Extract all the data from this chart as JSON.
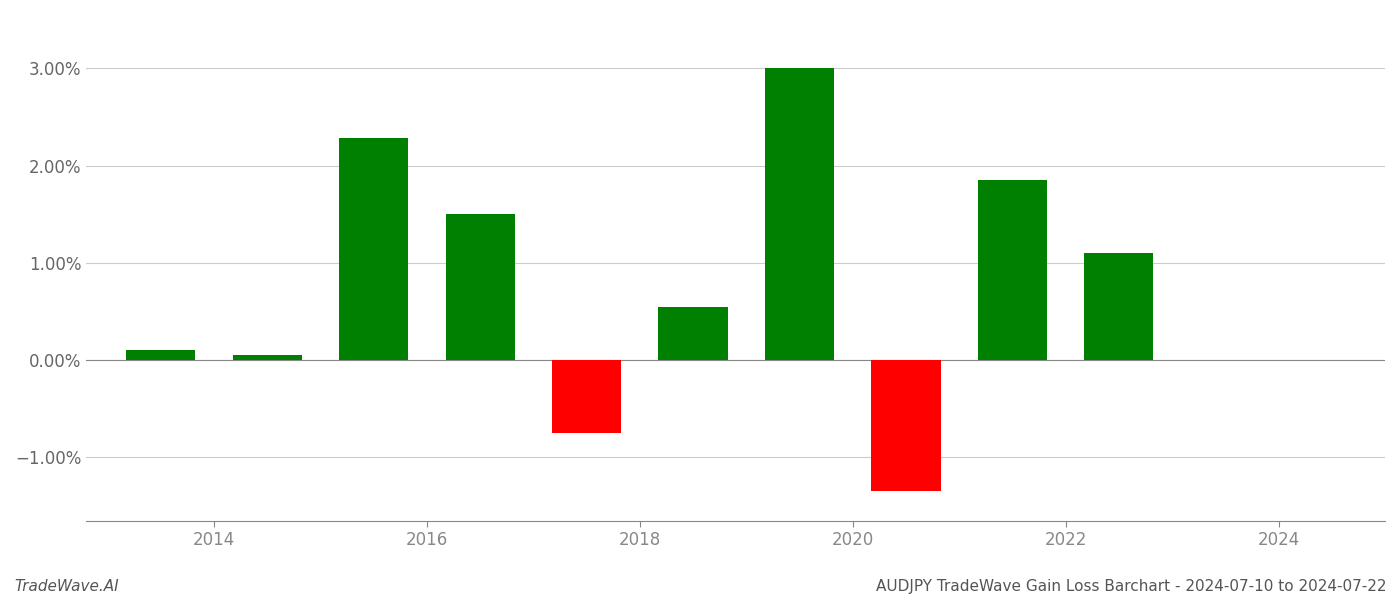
{
  "years": [
    2013.5,
    2014.5,
    2015.5,
    2016.5,
    2017.5,
    2018.5,
    2019.5,
    2020.5,
    2021.5,
    2022.5
  ],
  "values": [
    0.001,
    0.0005,
    0.0228,
    0.015,
    -0.0075,
    0.0055,
    0.03,
    -0.0135,
    0.0185,
    0.011
  ],
  "bar_width": 0.65,
  "color_positive": "#008000",
  "color_negative": "#ff0000",
  "title": "AUDJPY TradeWave Gain Loss Barchart - 2024-07-10 to 2024-07-22",
  "watermark": "TradeWave.AI",
  "ylim_min": -0.0165,
  "ylim_max": 0.0355,
  "yticks": [
    -0.01,
    0.0,
    0.01,
    0.02,
    0.03
  ],
  "ytick_labels": [
    "−1.00%",
    "0.00%",
    "1.00%",
    "2.00%",
    "3.00%"
  ],
  "xlim_min": 2012.8,
  "xlim_max": 2025.0,
  "xticks": [
    2014,
    2016,
    2018,
    2020,
    2022,
    2024
  ],
  "background_color": "#ffffff",
  "grid_color": "#cccccc",
  "grid_linewidth": 0.8,
  "axis_color": "#888888",
  "tick_label_color": "#666666",
  "title_fontsize": 11,
  "watermark_fontsize": 11,
  "tick_fontsize": 12
}
